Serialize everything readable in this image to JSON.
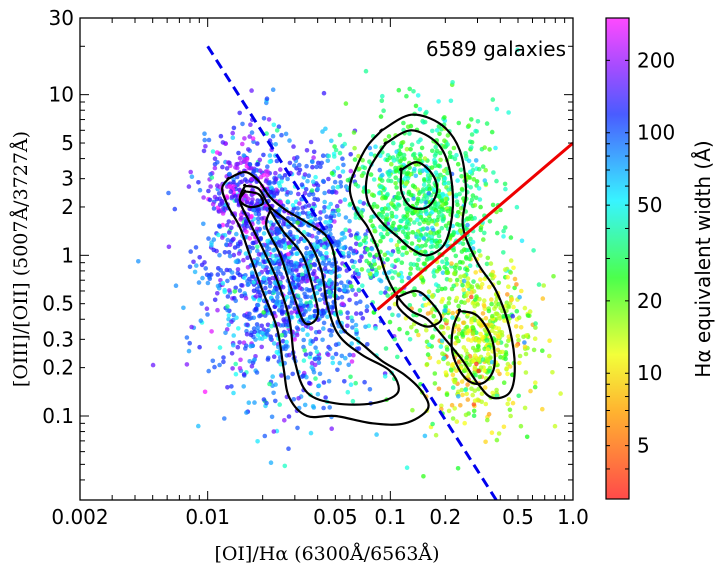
{
  "chart_data": {
    "type": "scatter",
    "title": "",
    "xlabel": "[OI]/Hα  (6300Å/6563Å)",
    "ylabel": "[OIII]/[OII]  (5007Å/3727Å)",
    "xscale": "log",
    "yscale": "log",
    "xlim": [
      0.002,
      1.0
    ],
    "ylim": [
      0.03,
      30
    ],
    "xticks": [
      {
        "value": 0.002,
        "label": "0.002"
      },
      {
        "value": 0.01,
        "label": "0.01"
      },
      {
        "value": 0.05,
        "label": "0.05"
      },
      {
        "value": 0.1,
        "label": "0.1"
      },
      {
        "value": 0.2,
        "label": "0.2"
      },
      {
        "value": 0.5,
        "label": "0.5"
      },
      {
        "value": 1.0,
        "label": "1.0"
      }
    ],
    "yticks": [
      {
        "value": 0.1,
        "label": "0.1"
      },
      {
        "value": 0.2,
        "label": "0.2"
      },
      {
        "value": 0.3,
        "label": "0.3"
      },
      {
        "value": 0.5,
        "label": "0.5"
      },
      {
        "value": 1,
        "label": "1"
      },
      {
        "value": 2,
        "label": "2"
      },
      {
        "value": 3,
        "label": "3"
      },
      {
        "value": 5,
        "label": "5"
      },
      {
        "value": 10,
        "label": "10"
      },
      {
        "value": 30,
        "label": "30"
      }
    ],
    "annotation": "6589 galaxies",
    "n_points": 6589,
    "point_clusters": [
      {
        "x_center": 0.028,
        "y_center": 0.8,
        "x_spread_dex": 0.22,
        "y_spread_dex": 0.38,
        "weight": 0.44,
        "ew_median": 90
      },
      {
        "x_center": 0.016,
        "y_center": 2.4,
        "x_spread_dex": 0.1,
        "y_spread_dex": 0.18,
        "weight": 0.08,
        "ew_median": 160
      },
      {
        "x_center": 0.15,
        "y_center": 2.0,
        "x_spread_dex": 0.2,
        "y_spread_dex": 0.28,
        "weight": 0.27,
        "ew_median": 25
      },
      {
        "x_center": 0.3,
        "y_center": 0.3,
        "x_spread_dex": 0.15,
        "y_spread_dex": 0.25,
        "weight": 0.17,
        "ew_median": 10
      },
      {
        "x_center": 0.08,
        "y_center": 0.6,
        "x_spread_dex": 0.5,
        "y_spread_dex": 0.55,
        "weight": 0.04,
        "ew_median": 40
      }
    ],
    "dividing_lines": [
      {
        "name": "dashed-blue",
        "color": "#0000ee",
        "style": "dashed",
        "points": [
          [
            0.01,
            20
          ],
          [
            0.38,
            0.03
          ]
        ]
      },
      {
        "name": "solid-red",
        "color": "#ee0000",
        "style": "solid",
        "points": [
          [
            0.085,
            0.46
          ],
          [
            1.0,
            5.0
          ]
        ]
      }
    ],
    "contours": [
      {
        "name": "contour-left-outer",
        "color": "#000000",
        "points": [
          [
            0.013,
            3.0
          ],
          [
            0.016,
            3.3
          ],
          [
            0.019,
            2.9
          ],
          [
            0.022,
            2.3
          ],
          [
            0.027,
            1.9
          ],
          [
            0.035,
            1.6
          ],
          [
            0.045,
            1.3
          ],
          [
            0.05,
            0.9
          ],
          [
            0.05,
            0.5
          ],
          [
            0.055,
            0.35
          ],
          [
            0.07,
            0.28
          ],
          [
            0.09,
            0.22
          ],
          [
            0.12,
            0.18
          ],
          [
            0.15,
            0.14
          ],
          [
            0.16,
            0.11
          ],
          [
            0.12,
            0.09
          ],
          [
            0.08,
            0.09
          ],
          [
            0.05,
            0.1
          ],
          [
            0.035,
            0.1
          ],
          [
            0.028,
            0.13
          ],
          [
            0.026,
            0.2
          ],
          [
            0.024,
            0.35
          ],
          [
            0.02,
            0.6
          ],
          [
            0.017,
            1.0
          ],
          [
            0.015,
            1.5
          ],
          [
            0.013,
            2.0
          ],
          [
            0.012,
            2.6
          ],
          [
            0.013,
            3.0
          ]
        ]
      },
      {
        "name": "contour-left-mid",
        "color": "#000000",
        "points": [
          [
            0.016,
            2.7
          ],
          [
            0.019,
            2.6
          ],
          [
            0.022,
            2.0
          ],
          [
            0.028,
            1.6
          ],
          [
            0.036,
            1.2
          ],
          [
            0.042,
            0.8
          ],
          [
            0.045,
            0.5
          ],
          [
            0.052,
            0.32
          ],
          [
            0.07,
            0.24
          ],
          [
            0.1,
            0.19
          ],
          [
            0.11,
            0.14
          ],
          [
            0.08,
            0.12
          ],
          [
            0.05,
            0.12
          ],
          [
            0.035,
            0.14
          ],
          [
            0.03,
            0.22
          ],
          [
            0.028,
            0.4
          ],
          [
            0.024,
            0.7
          ],
          [
            0.02,
            1.1
          ],
          [
            0.017,
            1.6
          ],
          [
            0.015,
            2.2
          ],
          [
            0.016,
            2.7
          ]
        ]
      },
      {
        "name": "contour-left-inner",
        "color": "#000000",
        "points": [
          [
            0.022,
            1.9
          ],
          [
            0.026,
            1.4
          ],
          [
            0.033,
            1.0
          ],
          [
            0.038,
            0.6
          ],
          [
            0.04,
            0.42
          ],
          [
            0.034,
            0.38
          ],
          [
            0.029,
            0.6
          ],
          [
            0.025,
            1.0
          ],
          [
            0.021,
            1.5
          ],
          [
            0.022,
            1.9
          ]
        ]
      },
      {
        "name": "contour-left-top",
        "color": "#000000",
        "points": [
          [
            0.016,
            2.5
          ],
          [
            0.019,
            2.4
          ],
          [
            0.02,
            2.1
          ],
          [
            0.017,
            2.0
          ],
          [
            0.015,
            2.2
          ],
          [
            0.016,
            2.5
          ]
        ]
      },
      {
        "name": "contour-right-outer",
        "color": "#000000",
        "points": [
          [
            0.09,
            6.0
          ],
          [
            0.13,
            7.5
          ],
          [
            0.19,
            6.5
          ],
          [
            0.24,
            4.5
          ],
          [
            0.26,
            2.5
          ],
          [
            0.25,
            1.5
          ],
          [
            0.3,
            0.9
          ],
          [
            0.38,
            0.6
          ],
          [
            0.45,
            0.35
          ],
          [
            0.48,
            0.2
          ],
          [
            0.45,
            0.14
          ],
          [
            0.36,
            0.13
          ],
          [
            0.3,
            0.16
          ],
          [
            0.25,
            0.22
          ],
          [
            0.2,
            0.3
          ],
          [
            0.16,
            0.4
          ],
          [
            0.13,
            0.45
          ],
          [
            0.11,
            0.55
          ],
          [
            0.095,
            0.75
          ],
          [
            0.085,
            1.1
          ],
          [
            0.075,
            1.5
          ],
          [
            0.065,
            1.9
          ],
          [
            0.06,
            2.6
          ],
          [
            0.065,
            3.5
          ],
          [
            0.075,
            4.8
          ],
          [
            0.09,
            6.0
          ]
        ]
      },
      {
        "name": "contour-right-mid",
        "color": "#000000",
        "points": [
          [
            0.095,
            5.0
          ],
          [
            0.13,
            6.0
          ],
          [
            0.18,
            5.0
          ],
          [
            0.21,
            3.5
          ],
          [
            0.22,
            2.0
          ],
          [
            0.2,
            1.2
          ],
          [
            0.16,
            1.0
          ],
          [
            0.13,
            1.1
          ],
          [
            0.11,
            1.3
          ],
          [
            0.09,
            1.6
          ],
          [
            0.075,
            2.2
          ],
          [
            0.075,
            3.2
          ],
          [
            0.085,
            4.2
          ],
          [
            0.095,
            5.0
          ]
        ]
      },
      {
        "name": "contour-right-inner",
        "color": "#000000",
        "points": [
          [
            0.115,
            3.4
          ],
          [
            0.14,
            3.8
          ],
          [
            0.17,
            3.2
          ],
          [
            0.18,
            2.5
          ],
          [
            0.16,
            2.0
          ],
          [
            0.13,
            2.0
          ],
          [
            0.115,
            2.5
          ],
          [
            0.115,
            3.4
          ]
        ]
      },
      {
        "name": "contour-bottom-right",
        "color": "#000000",
        "points": [
          [
            0.24,
            0.45
          ],
          [
            0.3,
            0.42
          ],
          [
            0.36,
            0.3
          ],
          [
            0.37,
            0.2
          ],
          [
            0.32,
            0.16
          ],
          [
            0.26,
            0.17
          ],
          [
            0.22,
            0.24
          ],
          [
            0.22,
            0.35
          ],
          [
            0.24,
            0.45
          ]
        ]
      },
      {
        "name": "contour-mid-loop",
        "color": "#000000",
        "points": [
          [
            0.11,
            0.55
          ],
          [
            0.14,
            0.6
          ],
          [
            0.17,
            0.5
          ],
          [
            0.19,
            0.4
          ],
          [
            0.16,
            0.36
          ],
          [
            0.13,
            0.4
          ],
          [
            0.11,
            0.48
          ],
          [
            0.11,
            0.55
          ]
        ]
      }
    ],
    "colorbar": {
      "label": "Hα  equivalent width (Å)",
      "scale": "log",
      "range": [
        3,
        300
      ],
      "ticks": [
        {
          "value": 5,
          "label": "5"
        },
        {
          "value": 10,
          "label": "10"
        },
        {
          "value": 20,
          "label": "20"
        },
        {
          "value": 50,
          "label": "50"
        },
        {
          "value": 100,
          "label": "100"
        },
        {
          "value": 200,
          "label": "200"
        }
      ],
      "colormap": "rainbow (red at low EW, through yellow, green, cyan, blue, to magenta at high EW)"
    },
    "grid": false,
    "legend": "none"
  }
}
